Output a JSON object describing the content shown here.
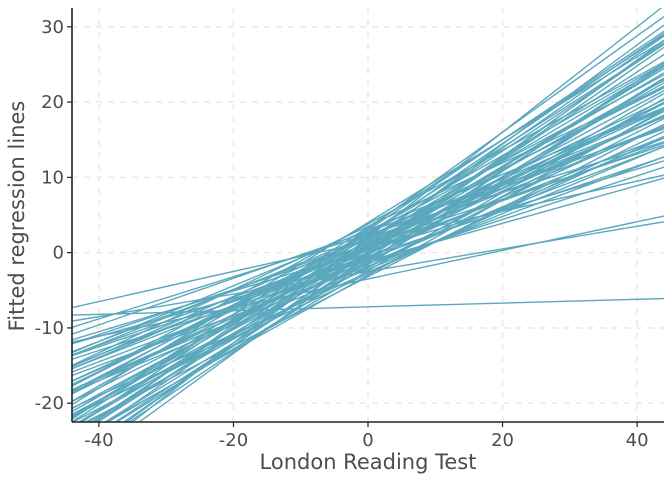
{
  "chart_data": {
    "type": "line",
    "title": "",
    "xlabel": "London Reading Test",
    "ylabel": "Fitted regression lines",
    "xlim": [
      -44,
      44
    ],
    "ylim": [
      -22.5,
      32.5
    ],
    "x_ticks": [
      -40,
      -20,
      0,
      20,
      40
    ],
    "y_ticks": [
      -20,
      -10,
      0,
      10,
      20,
      30
    ],
    "x_tick_labels": [
      "-40",
      "-20",
      "0",
      "20",
      "40"
    ],
    "y_tick_labels": [
      "-20",
      "-10",
      "0",
      "10",
      "20",
      "30"
    ],
    "grid": "major, dashed",
    "legend": "none",
    "line_color": "#5ba8be",
    "grid_color": "#efeae1",
    "axis_color": "#222222",
    "series_note_x": [
      -44,
      44
    ],
    "series": [
      {
        "intercept": 2.0,
        "slope": 0.7
      },
      {
        "intercept": 1.0,
        "slope": 0.52
      },
      {
        "intercept": 0.5,
        "slope": 0.4
      },
      {
        "intercept": -1.5,
        "slope": 0.38
      },
      {
        "intercept": -7.2,
        "slope": 0.025
      },
      {
        "intercept": 1.5,
        "slope": 0.2
      },
      {
        "intercept": -2.5,
        "slope": 0.15
      },
      {
        "intercept": -3.5,
        "slope": 0.19
      },
      {
        "intercept": 3.0,
        "slope": 0.6
      },
      {
        "intercept": -1.0,
        "slope": 0.55
      },
      {
        "intercept": 0.0,
        "slope": 0.62
      },
      {
        "intercept": 2.5,
        "slope": 0.48
      },
      {
        "intercept": -2.0,
        "slope": 0.45
      },
      {
        "intercept": 1.8,
        "slope": 0.34
      },
      {
        "intercept": -0.5,
        "slope": 0.3
      },
      {
        "intercept": 4.0,
        "slope": 0.55
      },
      {
        "intercept": 0.8,
        "slope": 0.58
      },
      {
        "intercept": -3.0,
        "slope": 0.5
      },
      {
        "intercept": 2.2,
        "slope": 0.36
      },
      {
        "intercept": 1.2,
        "slope": 0.66
      },
      {
        "intercept": -1.8,
        "slope": 0.33
      },
      {
        "intercept": 3.5,
        "slope": 0.42
      },
      {
        "intercept": 0.3,
        "slope": 0.27
      },
      {
        "intercept": -0.8,
        "slope": 0.47
      },
      {
        "intercept": 1.6,
        "slope": 0.53
      },
      {
        "intercept": -2.6,
        "slope": 0.41
      },
      {
        "intercept": 2.8,
        "slope": 0.31
      },
      {
        "intercept": 0.0,
        "slope": 0.35
      },
      {
        "intercept": -1.2,
        "slope": 0.6
      },
      {
        "intercept": 3.2,
        "slope": 0.64
      },
      {
        "intercept": 0.6,
        "slope": 0.44
      },
      {
        "intercept": -0.3,
        "slope": 0.52
      },
      {
        "intercept": 1.9,
        "slope": 0.46
      },
      {
        "intercept": -2.2,
        "slope": 0.37
      },
      {
        "intercept": 2.6,
        "slope": 0.57
      },
      {
        "intercept": -0.6,
        "slope": 0.4
      },
      {
        "intercept": 1.1,
        "slope": 0.3
      },
      {
        "intercept": 0.9,
        "slope": 0.5
      },
      {
        "intercept": -1.6,
        "slope": 0.56
      },
      {
        "intercept": 2.0,
        "slope": 0.39
      },
      {
        "intercept": -3.2,
        "slope": 0.46
      },
      {
        "intercept": 3.8,
        "slope": 0.49
      },
      {
        "intercept": 0.2,
        "slope": 0.63
      },
      {
        "intercept": -0.9,
        "slope": 0.34
      },
      {
        "intercept": 1.4,
        "slope": 0.43
      },
      {
        "intercept": 2.3,
        "slope": 0.61
      },
      {
        "intercept": -1.4,
        "slope": 0.29
      },
      {
        "intercept": 0.7,
        "slope": 0.54
      },
      {
        "intercept": -2.4,
        "slope": 0.52
      },
      {
        "intercept": 3.0,
        "slope": 0.37
      },
      {
        "intercept": 0.4,
        "slope": 0.48
      },
      {
        "intercept": -0.2,
        "slope": 0.42
      },
      {
        "intercept": 1.7,
        "slope": 0.59
      },
      {
        "intercept": 2.7,
        "slope": 0.51
      },
      {
        "intercept": -1.1,
        "slope": 0.25
      },
      {
        "intercept": 0.1,
        "slope": 0.56
      },
      {
        "intercept": -2.8,
        "slope": 0.43
      },
      {
        "intercept": 1.3,
        "slope": 0.38
      },
      {
        "intercept": 2.1,
        "slope": 0.45
      },
      {
        "intercept": -0.4,
        "slope": 0.65
      },
      {
        "intercept": 0.5,
        "slope": 0.32
      },
      {
        "intercept": 3.4,
        "slope": 0.58
      },
      {
        "intercept": -1.9,
        "slope": 0.47
      },
      {
        "intercept": 1.0,
        "slope": 0.41
      },
      {
        "intercept": -0.7,
        "slope": 0.58
      },
      {
        "intercept": 2.4,
        "slope": 0.28
      },
      {
        "intercept": 0.0,
        "slope": 0.45
      },
      {
        "intercept": -1.3,
        "slope": 0.51
      },
      {
        "intercept": 1.5,
        "slope": 0.62
      },
      {
        "intercept": 0.8,
        "slope": 0.36
      }
    ]
  }
}
